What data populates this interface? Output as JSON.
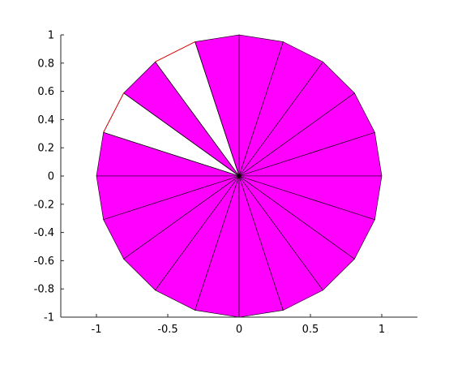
{
  "chart_data": {
    "type": "pie",
    "title": "",
    "xlabel": "",
    "ylabel": "",
    "xlim": [
      -1.25,
      1.25
    ],
    "ylim": [
      -1,
      1
    ],
    "grid": false,
    "legend": "none",
    "slice_count": 20,
    "slice_angle_deg": 18,
    "radius": 1,
    "center": [
      0,
      0
    ],
    "fill_color": "#ff00ff",
    "unfilled_color": "#ffffff",
    "edge_color": "#000000",
    "unfilled_edge_color": "#cc0000",
    "unfilled_slices": [
      {
        "start_deg": 108,
        "end_deg": 126
      },
      {
        "start_deg": 144,
        "end_deg": 162
      }
    ],
    "xticks": [
      {
        "value": -1,
        "label": "-1"
      },
      {
        "value": -0.5,
        "label": "-0.5"
      },
      {
        "value": 0,
        "label": "0"
      },
      {
        "value": 0.5,
        "label": "0.5"
      },
      {
        "value": 1,
        "label": "1"
      }
    ],
    "yticks": [
      {
        "value": 1,
        "label": "1"
      },
      {
        "value": 0.8,
        "label": "0.8"
      },
      {
        "value": 0.6,
        "label": "0.6"
      },
      {
        "value": 0.4,
        "label": "0.4"
      },
      {
        "value": 0.2,
        "label": "0.2"
      },
      {
        "value": 0,
        "label": "0"
      },
      {
        "value": -0.2,
        "label": "-0.2"
      },
      {
        "value": -0.4,
        "label": "-0.4"
      },
      {
        "value": -0.6,
        "label": "-0.6"
      },
      {
        "value": -0.8,
        "label": "-0.8"
      },
      {
        "value": -1,
        "label": "-1"
      }
    ]
  }
}
